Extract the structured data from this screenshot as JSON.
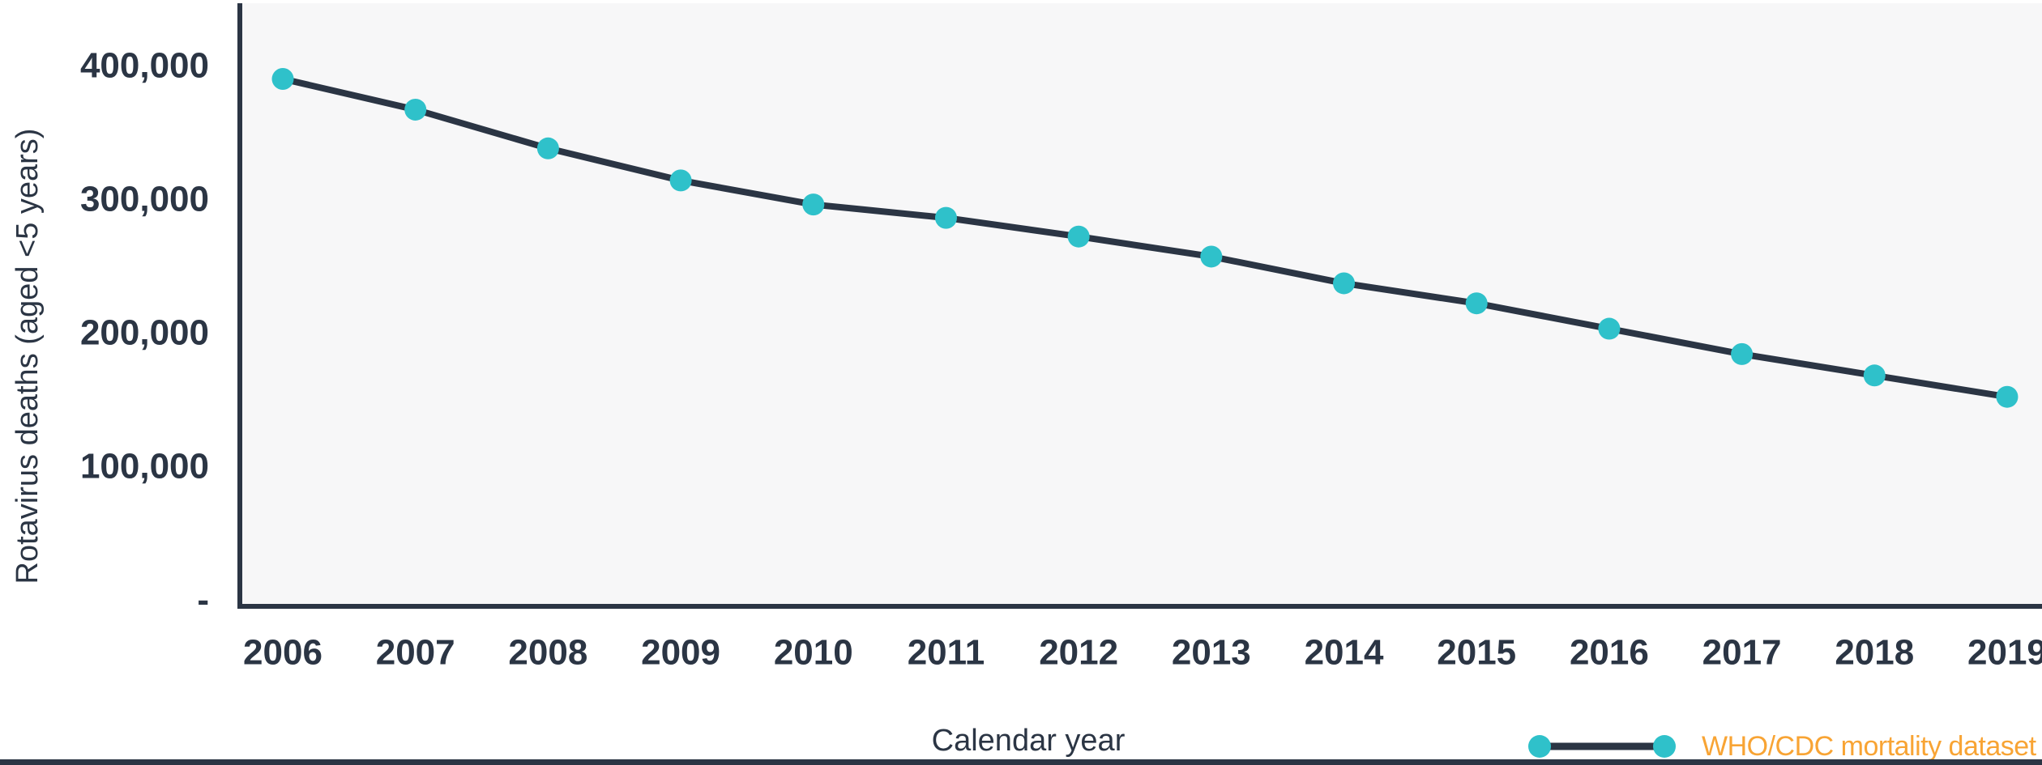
{
  "page": {
    "background_color": "#ffffff",
    "bottom_divider_color": "#2b3544"
  },
  "chart_data": {
    "type": "line",
    "title": "",
    "xlabel": "Calendar year",
    "ylabel": "Rotavirus deaths (aged <5 years)",
    "x": [
      "2006",
      "2007",
      "2008",
      "2009",
      "2010",
      "2011",
      "2012",
      "2013",
      "2014",
      "2015",
      "2016",
      "2017",
      "2018",
      "2019"
    ],
    "series": [
      {
        "name": "WHO/CDC mortality dataset",
        "values": [
          390000,
          367000,
          338000,
          314000,
          296000,
          286000,
          272000,
          257000,
          237000,
          222000,
          203000,
          184000,
          168000,
          152000
        ],
        "line_color": "#2b3544",
        "marker_color": "#2fc1ca"
      }
    ],
    "y_ticks": [
      {
        "label": "400,000",
        "value": 400000
      },
      {
        "label": "300,000",
        "value": 300000
      },
      {
        "label": "200,000",
        "value": 200000
      },
      {
        "label": "100,000",
        "value": 100000
      },
      {
        "label": "-",
        "value": 0
      }
    ],
    "ylim": [
      0,
      446000
    ],
    "grid": false,
    "plot_background": "#f7f7f8",
    "axis_color": "#2b3544",
    "tick_text_color": "#2b3544",
    "legend": {
      "position": "bottom-right",
      "items": [
        {
          "label": "WHO/CDC mortality dataset",
          "text_color": "#f8a434",
          "line_color": "#2b3544",
          "marker_color": "#2fc1ca"
        }
      ]
    }
  }
}
